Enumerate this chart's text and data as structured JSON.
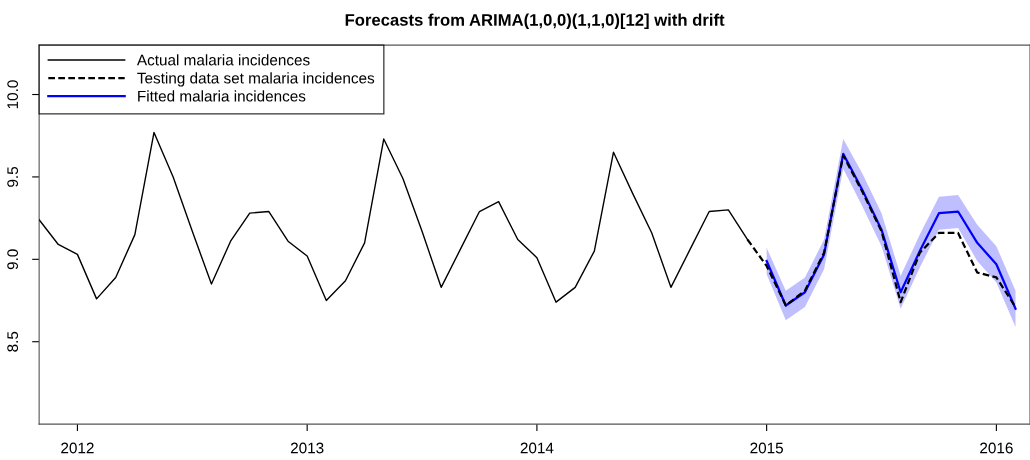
{
  "chart_data": {
    "type": "line",
    "title": "Forecasts from ARIMA(1,0,0)(1,1,0)[12] with drift",
    "xlim": [
      "2011-11",
      "2016-02-24"
    ],
    "xticks": [
      {
        "value": "2012",
        "label": "2012"
      },
      {
        "value": "2013",
        "label": "2013"
      },
      {
        "value": "2014",
        "label": "2014"
      },
      {
        "value": "2015",
        "label": "2015"
      },
      {
        "value": "2016",
        "label": "2016"
      }
    ],
    "ylim": [
      8.0,
      10.3
    ],
    "yticks": [
      {
        "value": 8.5,
        "label": "8.5"
      },
      {
        "value": 9.0,
        "label": "9.0"
      },
      {
        "value": 9.5,
        "label": "9.5"
      },
      {
        "value": 10.0,
        "label": "10.0"
      }
    ],
    "grid": false,
    "legend": "top left",
    "marker": "none",
    "series": [
      {
        "name": "Actual malaria incidences",
        "color": "#000000",
        "line_style": "solid",
        "x": [
          "2011-11",
          "2011-12",
          "2012-01",
          "2012-02",
          "2012-03",
          "2012-04",
          "2012-05",
          "2012-06",
          "2012-07",
          "2012-08",
          "2012-09",
          "2012-10",
          "2012-11",
          "2012-12",
          "2013-01",
          "2013-02",
          "2013-03",
          "2013-04",
          "2013-05",
          "2013-06",
          "2013-07",
          "2013-08",
          "2013-09",
          "2013-10",
          "2013-11",
          "2013-12",
          "2014-01",
          "2014-02",
          "2014-03",
          "2014-04",
          "2014-05",
          "2014-06",
          "2014-07",
          "2014-08",
          "2014-09",
          "2014-10",
          "2014-11",
          "2014-12"
        ],
        "values": [
          9.24,
          9.09,
          9.03,
          8.76,
          8.89,
          9.15,
          9.77,
          9.5,
          9.17,
          8.85,
          9.11,
          9.28,
          9.29,
          9.11,
          9.02,
          8.75,
          8.87,
          9.1,
          9.73,
          9.49,
          9.17,
          8.83,
          9.06,
          9.29,
          9.35,
          9.12,
          9.01,
          8.74,
          8.83,
          9.05,
          9.65,
          9.4,
          9.16,
          8.83,
          9.06,
          9.29,
          9.3,
          9.12
        ]
      },
      {
        "name": "Testing data set malaria incidences",
        "color": "#000000",
        "line_style": "dashed",
        "x": [
          "2014-12",
          "2015-01",
          "2015-02",
          "2015-03",
          "2015-04",
          "2015-05",
          "2015-06",
          "2015-07",
          "2015-08",
          "2015-09",
          "2015-10",
          "2015-11",
          "2015-12",
          "2016-01",
          "2016-02"
        ],
        "values": [
          9.12,
          8.96,
          8.72,
          8.81,
          9.04,
          9.63,
          9.41,
          9.17,
          8.74,
          9.04,
          9.16,
          9.16,
          8.92,
          8.89,
          8.71
        ]
      },
      {
        "name": "Fitted malaria incidences",
        "color": "#0000ff",
        "line_style": "solid",
        "x": [
          "2015-01",
          "2015-02",
          "2015-03",
          "2015-04",
          "2015-05",
          "2015-06",
          "2015-07",
          "2015-08",
          "2015-09",
          "2015-10",
          "2015-11",
          "2015-12",
          "2016-01",
          "2016-02"
        ],
        "values": [
          8.99,
          8.72,
          8.8,
          9.03,
          9.64,
          9.42,
          9.18,
          8.8,
          9.05,
          9.28,
          9.29,
          9.1,
          8.97,
          8.7
        ],
        "lower": [
          8.91,
          8.63,
          8.71,
          8.94,
          9.55,
          9.32,
          9.08,
          8.7,
          8.95,
          9.18,
          9.19,
          8.99,
          8.86,
          8.59
        ],
        "upper": [
          9.07,
          8.81,
          8.89,
          9.12,
          9.73,
          9.52,
          9.28,
          8.9,
          9.15,
          9.38,
          9.39,
          9.21,
          9.08,
          8.81
        ]
      }
    ]
  }
}
